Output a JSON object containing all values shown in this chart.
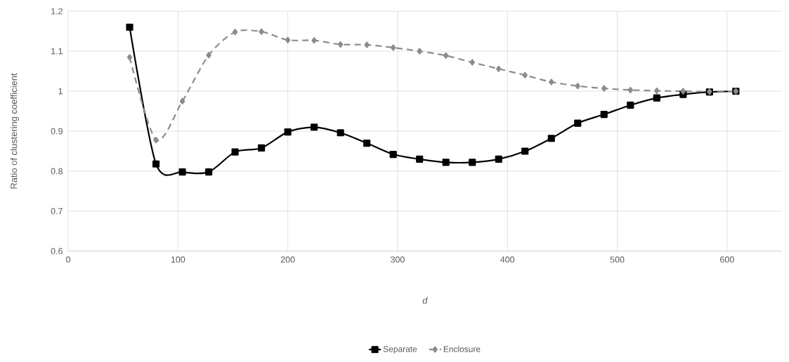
{
  "chart_data": {
    "type": "line",
    "xlabel": "*d*",
    "ylabel": "Ratio of clustering coefficient",
    "x": [
      56,
      80,
      104,
      128,
      152,
      176,
      200,
      224,
      248,
      272,
      296,
      320,
      344,
      368,
      392,
      416,
      440,
      464,
      488,
      512,
      536,
      560,
      584,
      608
    ],
    "series": [
      {
        "name": "Separate",
        "color": "#000000",
        "marker": "square",
        "line_style": "solid",
        "values": [
          1.16,
          0.818,
          0.798,
          0.798,
          0.848,
          0.858,
          0.898,
          0.91,
          0.896,
          0.87,
          0.842,
          0.83,
          0.822,
          0.822,
          0.83,
          0.85,
          0.882,
          0.92,
          0.942,
          0.965,
          0.983,
          0.992,
          0.998,
          1.0
        ]
      },
      {
        "name": "Enclosure",
        "color": "#8c8c8c",
        "marker": "diamond",
        "line_style": "dashed",
        "values": [
          1.085,
          0.878,
          0.975,
          1.09,
          1.148,
          1.149,
          1.128,
          1.127,
          1.117,
          1.116,
          1.109,
          1.1,
          1.089,
          1.072,
          1.056,
          1.04,
          1.023,
          1.013,
          1.007,
          1.003,
          1.001,
          1.0,
          0.999,
          1.0
        ]
      }
    ],
    "xlim": [
      0,
      650
    ],
    "xticks": [
      0,
      100,
      200,
      300,
      400,
      500,
      600
    ],
    "ylim": [
      0.6,
      1.2
    ],
    "yticks": [
      0.6,
      0.7,
      0.8,
      0.9,
      1,
      1.1,
      1.2
    ],
    "grid": true,
    "legend": "bottom"
  }
}
